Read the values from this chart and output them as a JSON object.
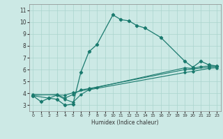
{
  "xlabel": "Humidex (Indice chaleur)",
  "bg_color": "#cce9e5",
  "grid_color": "#aad4ce",
  "line_color": "#1a7a6e",
  "xlim": [
    -0.5,
    23.5
  ],
  "ylim": [
    2.5,
    11.5
  ],
  "xticks": [
    0,
    1,
    2,
    3,
    4,
    5,
    6,
    7,
    8,
    9,
    10,
    11,
    12,
    13,
    14,
    15,
    16,
    17,
    18,
    19,
    20,
    21,
    22,
    23
  ],
  "yticks": [
    3,
    4,
    5,
    6,
    7,
    8,
    9,
    10,
    11
  ],
  "line1_x": [
    0,
    1,
    2,
    3,
    4,
    5,
    6,
    7,
    8,
    10,
    11,
    12,
    13,
    14,
    16,
    19,
    20,
    21,
    22,
    23
  ],
  "line1_y": [
    3.8,
    3.3,
    3.6,
    3.5,
    3.0,
    3.1,
    5.8,
    7.5,
    8.1,
    10.6,
    10.2,
    10.1,
    9.7,
    9.5,
    8.7,
    6.7,
    6.2,
    6.7,
    6.4,
    6.3
  ],
  "line2_x": [
    0,
    2,
    3,
    4,
    5,
    6,
    7,
    19,
    20,
    22,
    23
  ],
  "line2_y": [
    3.8,
    3.6,
    3.85,
    3.5,
    3.25,
    3.9,
    4.3,
    5.75,
    5.85,
    6.1,
    6.15
  ],
  "line3_x": [
    0,
    3,
    4,
    5,
    6,
    7,
    19,
    20,
    22,
    23
  ],
  "line3_y": [
    3.85,
    3.9,
    3.6,
    3.9,
    4.3,
    4.4,
    6.0,
    6.05,
    6.2,
    6.25
  ],
  "line4_x": [
    0,
    4,
    5,
    7,
    8,
    19,
    20,
    21,
    22,
    23
  ],
  "line4_y": [
    3.9,
    3.85,
    4.05,
    4.35,
    4.5,
    6.15,
    6.1,
    6.25,
    6.3,
    6.3
  ]
}
